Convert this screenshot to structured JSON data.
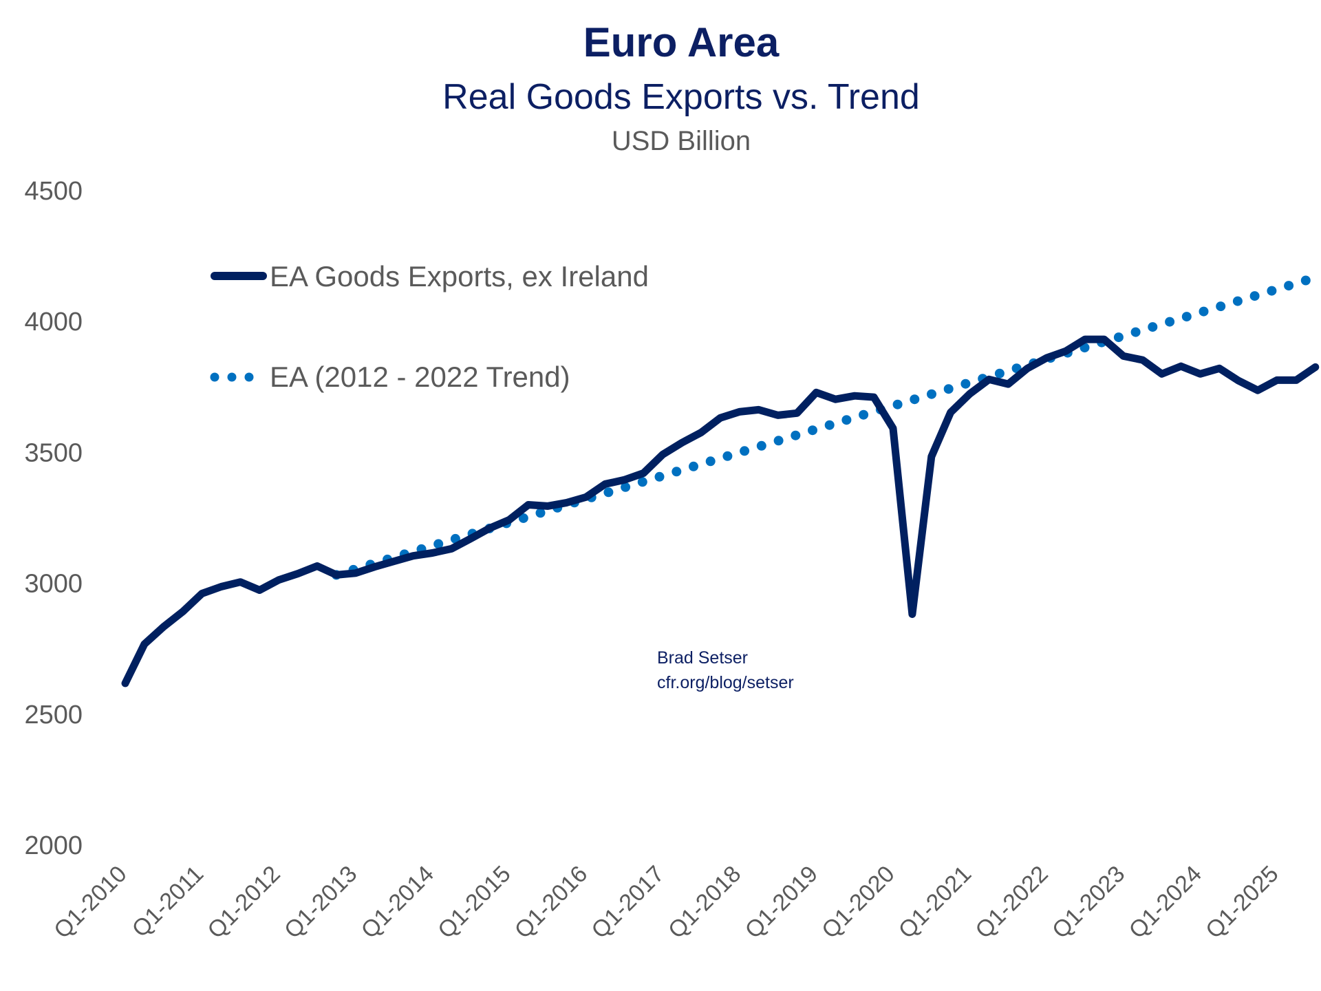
{
  "chart_data": {
    "type": "line",
    "title": "Euro Area",
    "subtitle": "Real Goods Exports vs. Trend",
    "unit_label": "USD Billion",
    "xlabel": "",
    "ylabel": "USD Billion",
    "ylim": [
      2000,
      4500
    ],
    "yticks": [
      2000,
      2500,
      3000,
      3500,
      4000,
      4500
    ],
    "grid": false,
    "legend_position": "top-left",
    "x_start": "Q1-2010",
    "x_frequency": "quarterly",
    "x_tick_labels": [
      "Q1-2010",
      "Q1-2011",
      "Q1-2012",
      "Q1-2013",
      "Q1-2014",
      "Q1-2015",
      "Q1-2016",
      "Q1-2017",
      "Q1-2018",
      "Q1-2019",
      "Q1-2020",
      "Q1-2021",
      "Q1-2022",
      "Q1-2023",
      "Q1-2024",
      "Q1-2025"
    ],
    "x": [
      "Q1-2010",
      "Q2-2010",
      "Q3-2010",
      "Q4-2010",
      "Q1-2011",
      "Q2-2011",
      "Q3-2011",
      "Q4-2011",
      "Q1-2012",
      "Q2-2012",
      "Q3-2012",
      "Q4-2012",
      "Q1-2013",
      "Q2-2013",
      "Q3-2013",
      "Q4-2013",
      "Q1-2014",
      "Q2-2014",
      "Q3-2014",
      "Q4-2014",
      "Q1-2015",
      "Q2-2015",
      "Q3-2015",
      "Q4-2015",
      "Q1-2016",
      "Q2-2016",
      "Q3-2016",
      "Q4-2016",
      "Q1-2017",
      "Q2-2017",
      "Q3-2017",
      "Q4-2017",
      "Q1-2018",
      "Q2-2018",
      "Q3-2018",
      "Q4-2018",
      "Q1-2019",
      "Q2-2019",
      "Q3-2019",
      "Q4-2019",
      "Q1-2020",
      "Q2-2020",
      "Q3-2020",
      "Q4-2020",
      "Q1-2021",
      "Q2-2021",
      "Q3-2021",
      "Q4-2021",
      "Q1-2022",
      "Q2-2022",
      "Q3-2022",
      "Q4-2022",
      "Q1-2023",
      "Q2-2023",
      "Q3-2023",
      "Q4-2023",
      "Q1-2024",
      "Q2-2024",
      "Q3-2024",
      "Q4-2024",
      "Q1-2025",
      "Q2-2025",
      "Q3-2025"
    ],
    "series": [
      {
        "name": "EA Goods Exports, ex Ireland",
        "style": "solid",
        "color": "#002060",
        "values": [
          2618,
          2768,
          2834,
          2892,
          2961,
          2987,
          3005,
          2974,
          3013,
          3037,
          3066,
          3032,
          3039,
          3063,
          3084,
          3105,
          3116,
          3132,
          3171,
          3211,
          3242,
          3300,
          3295,
          3308,
          3329,
          3379,
          3395,
          3421,
          3492,
          3537,
          3576,
          3632,
          3655,
          3663,
          3642,
          3650,
          3729,
          3703,
          3716,
          3711,
          3592,
          2882,
          3484,
          3653,
          3724,
          3779,
          3761,
          3821,
          3861,
          3887,
          3932,
          3932,
          3868,
          3853,
          3800,
          3829,
          3800,
          3821,
          3774,
          3737,
          3776,
          3776,
          3826
        ]
      },
      {
        "name": "EA (2012 - 2022 Trend)",
        "style": "dotted",
        "color": "#0070C0",
        "start_index": 11,
        "end_index": 62,
        "start_value": 3032,
        "end_value": 4168
      }
    ],
    "annotations": [
      "Brad Setser",
      "cfr.org/blog/setser"
    ]
  },
  "legend": {
    "items": [
      {
        "label": "EA Goods Exports, ex Ireland"
      },
      {
        "label": "EA (2012 - 2022 Trend)"
      }
    ]
  },
  "credit": {
    "author": "Brad Setser",
    "url_text": "cfr.org/blog/setser"
  }
}
